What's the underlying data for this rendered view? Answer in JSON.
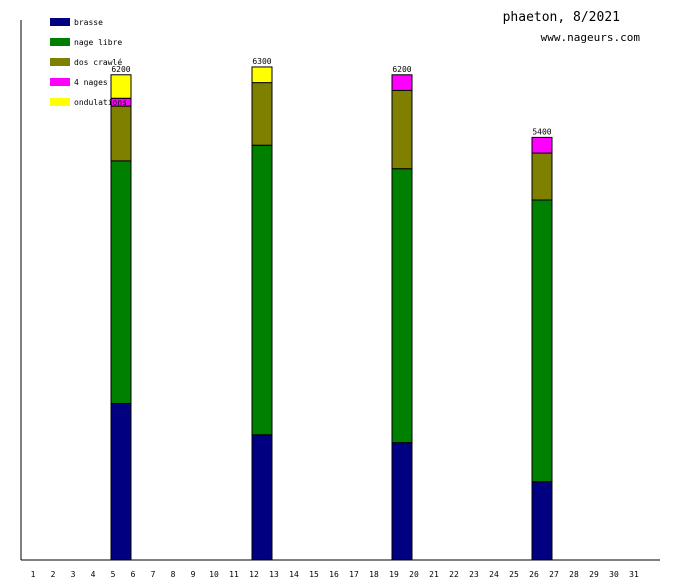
{
  "header": {
    "title": "phaeton, 8/2021",
    "site": "www.nageurs.com"
  },
  "chart_data": {
    "type": "bar",
    "stacked": true,
    "title": "phaeton, 8/2021",
    "xlabel": "",
    "ylabel": "",
    "ylim": [
      0,
      6900
    ],
    "grid": false,
    "legend_position": "top-left",
    "x": [
      "1",
      "2",
      "3",
      "4",
      "5",
      "6",
      "7",
      "8",
      "9",
      "10",
      "11",
      "12",
      "13",
      "14",
      "15",
      "16",
      "17",
      "18",
      "19",
      "20",
      "21",
      "22",
      "23",
      "24",
      "25",
      "26",
      "27",
      "28",
      "29",
      "30",
      "31"
    ],
    "series": [
      {
        "name": "brasse",
        "color": "#000080",
        "values": [
          0,
          0,
          0,
          0,
          2000,
          0,
          0,
          0,
          0,
          0,
          0,
          1600,
          0,
          0,
          0,
          0,
          0,
          0,
          1500,
          0,
          0,
          0,
          0,
          0,
          0,
          1000,
          0,
          0,
          0,
          0,
          0
        ]
      },
      {
        "name": "nage libre",
        "color": "#008000",
        "values": [
          0,
          0,
          0,
          0,
          3100,
          0,
          0,
          0,
          0,
          0,
          0,
          3700,
          0,
          0,
          0,
          0,
          0,
          0,
          3500,
          0,
          0,
          0,
          0,
          0,
          0,
          3600,
          0,
          0,
          0,
          0,
          0
        ]
      },
      {
        "name": "dos crawlé",
        "color": "#808000",
        "values": [
          0,
          0,
          0,
          0,
          700,
          0,
          0,
          0,
          0,
          0,
          0,
          800,
          0,
          0,
          0,
          0,
          0,
          0,
          1000,
          0,
          0,
          0,
          0,
          0,
          0,
          600,
          0,
          0,
          0,
          0,
          0
        ]
      },
      {
        "name": "4 nages",
        "color": "#ff00ff",
        "values": [
          0,
          0,
          0,
          0,
          100,
          0,
          0,
          0,
          0,
          0,
          0,
          0,
          0,
          0,
          0,
          0,
          0,
          0,
          200,
          0,
          0,
          0,
          0,
          0,
          0,
          200,
          0,
          0,
          0,
          0,
          0
        ]
      },
      {
        "name": "ondulations",
        "color": "#ffff00",
        "values": [
          0,
          0,
          0,
          0,
          300,
          0,
          0,
          0,
          0,
          0,
          0,
          200,
          0,
          0,
          0,
          0,
          0,
          0,
          0,
          0,
          0,
          0,
          0,
          0,
          0,
          0,
          0,
          0,
          0,
          0,
          0
        ]
      }
    ],
    "totals": [
      {
        "day": "5",
        "label": "6200"
      },
      {
        "day": "12",
        "label": "6300"
      },
      {
        "day": "19",
        "label": "6200"
      },
      {
        "day": "26",
        "label": "5400"
      }
    ]
  }
}
